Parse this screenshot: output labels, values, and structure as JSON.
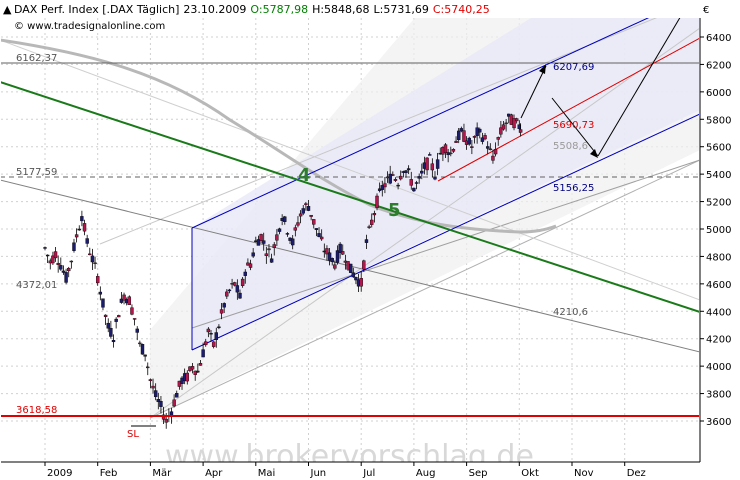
{
  "header": {
    "instrument": "DAX Perf. Index [.DAX Täglich]",
    "date": "23.10.2009",
    "open": "O:5787,98",
    "high": "H:5848,68",
    "low": "L:5731,69",
    "close": "C:5740,25",
    "source": "© www.tradesignalonline.com",
    "currency_symbol": "€",
    "colors": {
      "open": "#008000",
      "close": "#e00000"
    }
  },
  "watermark": "www.brokervorschlag.de",
  "chart_data": {
    "type": "candlestick",
    "title": "DAX Perf. Index [.DAX Täglich]",
    "y_ticks": [
      "6400",
      "6200",
      "6000",
      "5800",
      "5600",
      "5400",
      "5200",
      "5000",
      "4800",
      "4600",
      "4400",
      "4200",
      "4000",
      "3800",
      "3600"
    ],
    "ylim": [
      3480,
      6600
    ],
    "x_ticks": [
      "2009",
      "Feb",
      "Mär",
      "Apr",
      "Mai",
      "Jun",
      "Jul",
      "Aug",
      "Sep",
      "Okt",
      "Nov",
      "Dez"
    ],
    "xlim_months": [
      0,
      12
    ],
    "log_scale": false,
    "grid": true,
    "levels": [
      {
        "label": "6162,37",
        "value": 6162.37,
        "color": "#555555"
      },
      {
        "label": "5177,59",
        "value": 5177.59,
        "color": "#555555"
      },
      {
        "label": "4372,01",
        "value": 4372.01,
        "color": "#555555"
      },
      {
        "label": "3618,58",
        "value": 3618.58,
        "color": "#e00000"
      }
    ],
    "annotations": [
      {
        "label": "6207,69",
        "value": 6207.69,
        "color": "#000080"
      },
      {
        "label": "5690,73",
        "value": 5690.73,
        "color": "#e00000"
      },
      {
        "label": "5508,6",
        "value": 5508.6,
        "color": "#9a9a9a"
      },
      {
        "label": "5156,25",
        "value": 5156.25,
        "color": "#000080"
      },
      {
        "label": "4210,6",
        "value": 4210.6,
        "color": "#555555"
      },
      {
        "label": "4",
        "color": "#2e7d2e"
      },
      {
        "label": "5",
        "color": "#2e7d2e"
      },
      {
        "label": "SL",
        "color": "#e00000"
      }
    ],
    "price_path": [
      [
        0.0,
        4860
      ],
      [
        0.1,
        4760
      ],
      [
        0.2,
        4820
      ],
      [
        0.3,
        4740
      ],
      [
        0.4,
        4640
      ],
      [
        0.5,
        4780
      ],
      [
        0.6,
        4950
      ],
      [
        0.7,
        5100
      ],
      [
        0.8,
        4900
      ],
      [
        0.9,
        4780
      ],
      [
        1.0,
        4650
      ],
      [
        1.1,
        4450
      ],
      [
        1.2,
        4280
      ],
      [
        1.3,
        4220
      ],
      [
        1.4,
        4400
      ],
      [
        1.5,
        4520
      ],
      [
        1.6,
        4480
      ],
      [
        1.7,
        4350
      ],
      [
        1.8,
        4150
      ],
      [
        1.9,
        4100
      ],
      [
        2.0,
        3900
      ],
      [
        2.1,
        3780
      ],
      [
        2.2,
        3700
      ],
      [
        2.3,
        3600
      ],
      [
        2.4,
        3680
      ],
      [
        2.5,
        3800
      ],
      [
        2.6,
        3900
      ],
      [
        2.7,
        3920
      ],
      [
        2.8,
        4000
      ],
      [
        2.9,
        3960
      ],
      [
        3.0,
        4100
      ],
      [
        3.1,
        4250
      ],
      [
        3.2,
        4150
      ],
      [
        3.3,
        4300
      ],
      [
        3.4,
        4450
      ],
      [
        3.5,
        4550
      ],
      [
        3.6,
        4600
      ],
      [
        3.7,
        4500
      ],
      [
        3.8,
        4700
      ],
      [
        3.9,
        4750
      ],
      [
        4.0,
        4900
      ],
      [
        4.1,
        4950
      ],
      [
        4.2,
        4850
      ],
      [
        4.3,
        4800
      ],
      [
        4.4,
        4950
      ],
      [
        4.5,
        5100
      ],
      [
        4.6,
        5000
      ],
      [
        4.7,
        4900
      ],
      [
        4.8,
        5050
      ],
      [
        4.9,
        5150
      ],
      [
        5.0,
        5170
      ],
      [
        5.1,
        5050
      ],
      [
        5.2,
        4950
      ],
      [
        5.3,
        4850
      ],
      [
        5.4,
        4800
      ],
      [
        5.5,
        4750
      ],
      [
        5.6,
        4850
      ],
      [
        5.7,
        4800
      ],
      [
        5.8,
        4700
      ],
      [
        5.9,
        4650
      ],
      [
        6.0,
        4600
      ],
      [
        6.1,
        4900
      ],
      [
        6.2,
        5050
      ],
      [
        6.3,
        5200
      ],
      [
        6.4,
        5300
      ],
      [
        6.5,
        5350
      ],
      [
        6.6,
        5400
      ],
      [
        6.7,
        5350
      ],
      [
        6.8,
        5450
      ],
      [
        6.9,
        5400
      ],
      [
        7.0,
        5300
      ],
      [
        7.1,
        5350
      ],
      [
        7.2,
        5450
      ],
      [
        7.3,
        5500
      ],
      [
        7.4,
        5400
      ],
      [
        7.5,
        5550
      ],
      [
        7.6,
        5600
      ],
      [
        7.7,
        5550
      ],
      [
        7.8,
        5650
      ],
      [
        7.9,
        5700
      ],
      [
        8.0,
        5650
      ],
      [
        8.1,
        5600
      ],
      [
        8.2,
        5700
      ],
      [
        8.3,
        5680
      ],
      [
        8.4,
        5620
      ],
      [
        8.5,
        5500
      ],
      [
        8.6,
        5650
      ],
      [
        8.7,
        5750
      ],
      [
        8.8,
        5800
      ],
      [
        8.9,
        5780
      ],
      [
        9.0,
        5750
      ],
      [
        9.05,
        5740
      ]
    ]
  }
}
